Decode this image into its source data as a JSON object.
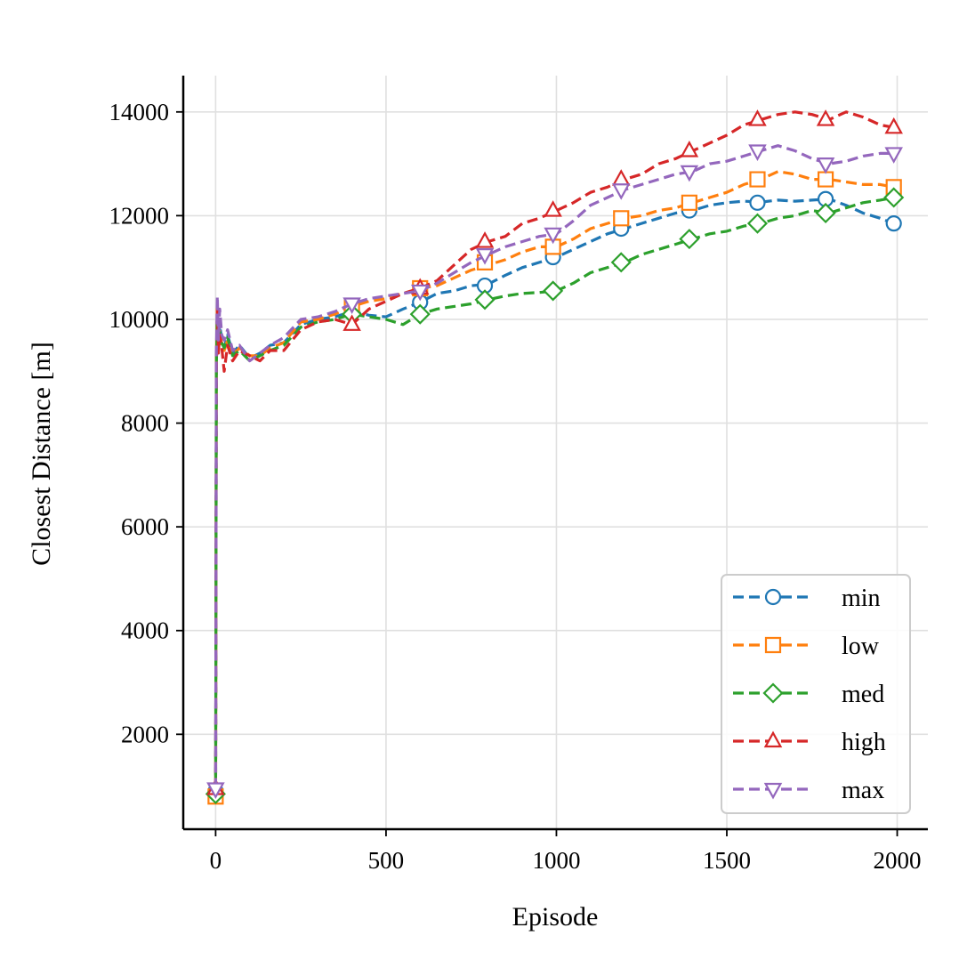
{
  "chart_data": {
    "type": "line",
    "title": "",
    "xlabel": "Episode",
    "ylabel": "Closest Distance [m]",
    "xlim": [
      -95,
      2090
    ],
    "ylim": [
      170,
      14700
    ],
    "xticks": [
      0,
      500,
      1000,
      1500,
      2000
    ],
    "yticks": [
      2000,
      4000,
      6000,
      8000,
      10000,
      12000,
      14000
    ],
    "grid": true,
    "legend_position": "bottom-right",
    "colors": {
      "min": "#1f77b4",
      "low": "#ff7f0e",
      "med": "#2ca02c",
      "high": "#d62728",
      "max": "#9467bd",
      "grid": "#e0e0e0",
      "axis": "#000000"
    },
    "series": [
      {
        "name": "min",
        "label": "min",
        "color": "#1f77b4",
        "marker": "circle",
        "x": [
          0,
          2,
          5,
          8,
          12,
          18,
          25,
          35,
          50,
          70,
          100,
          130,
          160,
          200,
          250,
          300,
          350,
          400,
          450,
          500,
          550,
          600,
          650,
          700,
          750,
          800,
          850,
          900,
          950,
          1000,
          1050,
          1100,
          1150,
          1200,
          1250,
          1300,
          1350,
          1400,
          1450,
          1500,
          1550,
          1600,
          1650,
          1700,
          1750,
          1800,
          1850,
          1900,
          1950,
          1990
        ],
        "y": [
          900,
          9200,
          10200,
          9500,
          9900,
          9600,
          9450,
          9700,
          9350,
          9500,
          9250,
          9350,
          9500,
          9550,
          9900,
          10000,
          10050,
          10150,
          10080,
          10050,
          10200,
          10330,
          10500,
          10550,
          10650,
          10680,
          10850,
          11000,
          11100,
          11200,
          11350,
          11500,
          11650,
          11750,
          11850,
          11950,
          12050,
          12100,
          12200,
          12250,
          12280,
          12260,
          12300,
          12280,
          12300,
          12320,
          12200,
          12050,
          11950,
          11850
        ],
        "marker_x": [
          0,
          400,
          600,
          790,
          990,
          1190,
          1390,
          1590,
          1790,
          1990
        ],
        "marker_y": [
          900,
          10150,
          10330,
          10650,
          11200,
          11750,
          12100,
          12250,
          12320,
          11850
        ]
      },
      {
        "name": "low",
        "label": "low",
        "color": "#ff7f0e",
        "marker": "square",
        "x": [
          0,
          2,
          5,
          8,
          12,
          18,
          25,
          35,
          50,
          70,
          100,
          130,
          160,
          200,
          250,
          300,
          350,
          400,
          450,
          500,
          550,
          600,
          650,
          700,
          750,
          800,
          850,
          900,
          950,
          1000,
          1050,
          1100,
          1150,
          1200,
          1250,
          1300,
          1350,
          1400,
          1450,
          1500,
          1550,
          1600,
          1650,
          1700,
          1750,
          1800,
          1850,
          1900,
          1950,
          1990
        ],
        "y": [
          800,
          9300,
          10300,
          9600,
          9800,
          9500,
          9400,
          9600,
          9300,
          9450,
          9300,
          9300,
          9450,
          9550,
          9950,
          10000,
          10100,
          10250,
          10350,
          10400,
          10500,
          10600,
          10650,
          10800,
          10950,
          11050,
          11150,
          11300,
          11400,
          11400,
          11550,
          11750,
          11850,
          11950,
          12000,
          12100,
          12150,
          12250,
          12350,
          12450,
          12600,
          12700,
          12850,
          12800,
          12700,
          12700,
          12650,
          12600,
          12600,
          12550
        ],
        "marker_x": [
          0,
          400,
          600,
          790,
          990,
          1190,
          1390,
          1590,
          1790,
          1990
        ],
        "marker_y": [
          800,
          10250,
          10600,
          11100,
          11400,
          11950,
          12250,
          12700,
          12700,
          12550
        ]
      },
      {
        "name": "med",
        "label": "med",
        "color": "#2ca02c",
        "marker": "diamond",
        "x": [
          0,
          2,
          5,
          8,
          12,
          18,
          25,
          35,
          50,
          70,
          100,
          130,
          160,
          200,
          250,
          300,
          350,
          400,
          450,
          500,
          550,
          600,
          650,
          700,
          750,
          800,
          850,
          900,
          950,
          1000,
          1050,
          1100,
          1150,
          1200,
          1250,
          1300,
          1350,
          1400,
          1450,
          1500,
          1550,
          1600,
          1650,
          1700,
          1750,
          1800,
          1850,
          1900,
          1950,
          1990
        ],
        "y": [
          850,
          9100,
          10100,
          9400,
          9750,
          9550,
          9450,
          9650,
          9300,
          9400,
          9200,
          9300,
          9400,
          9500,
          9850,
          9950,
          10000,
          10100,
          10050,
          10000,
          9900,
          10100,
          10200,
          10250,
          10300,
          10380,
          10450,
          10500,
          10520,
          10550,
          10700,
          10900,
          11000,
          11100,
          11250,
          11350,
          11450,
          11550,
          11650,
          11700,
          11800,
          11850,
          11950,
          12000,
          12100,
          12050,
          12150,
          12250,
          12300,
          12350
        ],
        "marker_x": [
          0,
          400,
          600,
          790,
          990,
          1190,
          1390,
          1590,
          1790,
          1990
        ],
        "marker_y": [
          850,
          10100,
          10100,
          10380,
          10550,
          11100,
          11550,
          11850,
          12050,
          12350
        ]
      },
      {
        "name": "high",
        "label": "high",
        "color": "#d62728",
        "marker": "triangle-up",
        "x": [
          0,
          2,
          5,
          8,
          12,
          18,
          25,
          35,
          50,
          70,
          100,
          130,
          160,
          200,
          250,
          300,
          350,
          400,
          450,
          500,
          550,
          600,
          650,
          700,
          750,
          800,
          850,
          900,
          950,
          1000,
          1050,
          1100,
          1150,
          1200,
          1250,
          1300,
          1350,
          1400,
          1450,
          1500,
          1550,
          1600,
          1650,
          1700,
          1750,
          1800,
          1850,
          1900,
          1950,
          1990
        ],
        "y": [
          950,
          9000,
          10250,
          9350,
          9700,
          9450,
          9000,
          9500,
          9200,
          9400,
          9300,
          9200,
          9400,
          9400,
          9800,
          9950,
          10000,
          9900,
          10200,
          10350,
          10500,
          10600,
          10750,
          11050,
          11350,
          11500,
          11600,
          11850,
          11950,
          12100,
          12250,
          12450,
          12550,
          12700,
          12800,
          13000,
          13100,
          13250,
          13400,
          13550,
          13750,
          13850,
          13950,
          14000,
          13950,
          13850,
          14000,
          13900,
          13750,
          13700
        ],
        "marker_x": [
          0,
          400,
          600,
          790,
          990,
          1190,
          1390,
          1590,
          1790,
          1990
        ],
        "marker_y": [
          950,
          9900,
          10600,
          11500,
          12100,
          12700,
          13250,
          13850,
          13850,
          13700
        ]
      },
      {
        "name": "max",
        "label": "max",
        "color": "#9467bd",
        "marker": "triangle-down",
        "x": [
          0,
          2,
          5,
          8,
          12,
          18,
          25,
          35,
          50,
          70,
          100,
          130,
          160,
          200,
          250,
          300,
          350,
          400,
          450,
          500,
          550,
          600,
          650,
          700,
          750,
          800,
          850,
          900,
          950,
          1000,
          1050,
          1100,
          1150,
          1200,
          1250,
          1300,
          1350,
          1400,
          1450,
          1500,
          1550,
          1600,
          1650,
          1700,
          1750,
          1800,
          1850,
          1900,
          1950,
          1990
        ],
        "y": [
          950,
          9400,
          10450,
          9600,
          10200,
          9700,
          9600,
          9800,
          9400,
          9500,
          9200,
          9350,
          9500,
          9650,
          10000,
          10050,
          10150,
          10300,
          10400,
          10450,
          10500,
          10550,
          10700,
          10900,
          11100,
          11250,
          11400,
          11500,
          11600,
          11650,
          11900,
          12200,
          12350,
          12500,
          12600,
          12700,
          12800,
          12850,
          13000,
          13050,
          13150,
          13250,
          13350,
          13250,
          13100,
          13000,
          13050,
          13150,
          13200,
          13200
        ],
        "marker_x": [
          0,
          400,
          600,
          790,
          990,
          1190,
          1390,
          1590,
          1790,
          1990
        ],
        "marker_y": [
          950,
          10300,
          10550,
          11250,
          11650,
          12500,
          12850,
          13250,
          13000,
          13200
        ]
      }
    ]
  }
}
